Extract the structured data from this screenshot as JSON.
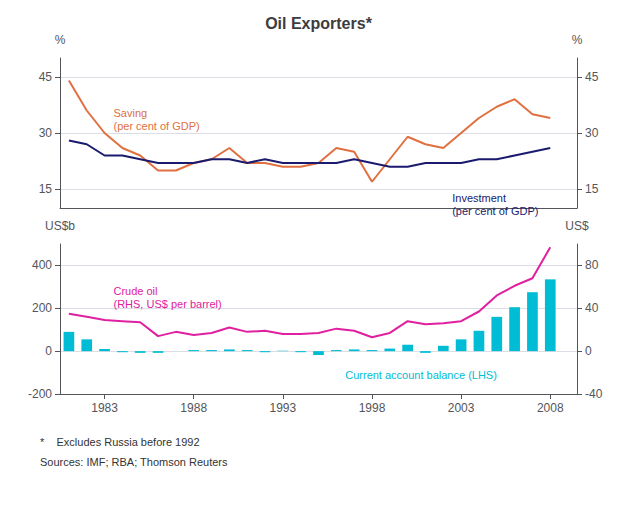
{
  "chart_data": [
    {
      "type": "line",
      "title": "Oil Exporters*",
      "x": [
        1981,
        1982,
        1983,
        1984,
        1985,
        1986,
        1987,
        1988,
        1989,
        1990,
        1991,
        1992,
        1993,
        1994,
        1995,
        1996,
        1997,
        1998,
        1999,
        2000,
        2001,
        2002,
        2003,
        2004,
        2005,
        2006,
        2007,
        2008
      ],
      "series": [
        {
          "color": "#e07040",
          "values": [
            44,
            36,
            30,
            26,
            24,
            20,
            20,
            22,
            23,
            26,
            22,
            22,
            21,
            21,
            22,
            26,
            25,
            17,
            23,
            29,
            27,
            26,
            30,
            34,
            37,
            39,
            35,
            34
          ]
        },
        {
          "color": "#1a1a6e",
          "values": [
            28,
            27,
            24,
            24,
            23,
            22,
            22,
            22,
            23,
            23,
            22,
            23,
            22,
            22,
            22,
            22,
            23,
            22,
            21,
            21,
            22,
            22,
            22,
            23,
            23,
            24,
            25,
            26
          ]
        }
      ],
      "xlim": [
        1980.5,
        2009.5
      ],
      "ylim": [
        10,
        50
      ],
      "yticks": [
        15,
        30,
        45
      ],
      "y2lim": [
        10,
        50
      ],
      "y2ticks": [
        15,
        30,
        45
      ],
      "ylabel": "%",
      "y2label": "%",
      "grid": true,
      "tick_labels": "y",
      "annotations": [
        {
          "text": "Saving\n(per cent of GDP)",
          "x": 1983.5,
          "y": 37,
          "color": "#e07040"
        },
        {
          "text": "Investment\n(per cent of GDP)",
          "x": 2002.5,
          "y": 14.5,
          "color": "#1a1a6e"
        }
      ]
    },
    {
      "type": "bar",
      "x": [
        1981,
        1982,
        1983,
        1984,
        1985,
        1986,
        1987,
        1988,
        1989,
        1990,
        1991,
        1992,
        1993,
        1994,
        1995,
        1996,
        1997,
        1998,
        1999,
        2000,
        2001,
        2002,
        2003,
        2004,
        2005,
        2006,
        2007,
        2008
      ],
      "series": [
        {
          "type": "bar",
          "color": "#00bcd4",
          "values": [
            90,
            55,
            10,
            -5,
            -8,
            -8,
            0,
            5,
            5,
            8,
            5,
            -5,
            2,
            -5,
            -18,
            5,
            8,
            5,
            12,
            30,
            -8,
            25,
            55,
            95,
            160,
            205,
            275,
            335
          ]
        },
        {
          "type": "line",
          "axis": "y2",
          "color": "#e020a0",
          "values": [
            35,
            32,
            29,
            28,
            27,
            14,
            18,
            15,
            17,
            22,
            18,
            19,
            16,
            16,
            17,
            21,
            19,
            13,
            17,
            28,
            25,
            26,
            28,
            37,
            52,
            61,
            68,
            97
          ]
        }
      ],
      "xlim": [
        1980.5,
        2009.5
      ],
      "xticks": [
        1983,
        1988,
        1993,
        1998,
        2003,
        2008
      ],
      "ylim": [
        -200,
        500
      ],
      "yticks": [
        -200,
        0,
        200,
        400
      ],
      "y2lim": [
        -40,
        100
      ],
      "y2ticks": [
        -40,
        0,
        40,
        80
      ],
      "ylabel": "US$b",
      "y2label": "US$",
      "grid": true,
      "annotations": [
        {
          "text": "Crude oil\n(RHS, US$ per barrel)",
          "x": 1983.5,
          "y": 310,
          "color": "#e020a0"
        },
        {
          "text": "Current account balance (LHS)",
          "x": 1996.5,
          "y": -80,
          "color": "#00bcd4"
        }
      ],
      "footnotes": [
        "*    Excludes Russia before 1992",
        "Sources: IMF; RBA; Thomson Reuters"
      ]
    }
  ]
}
